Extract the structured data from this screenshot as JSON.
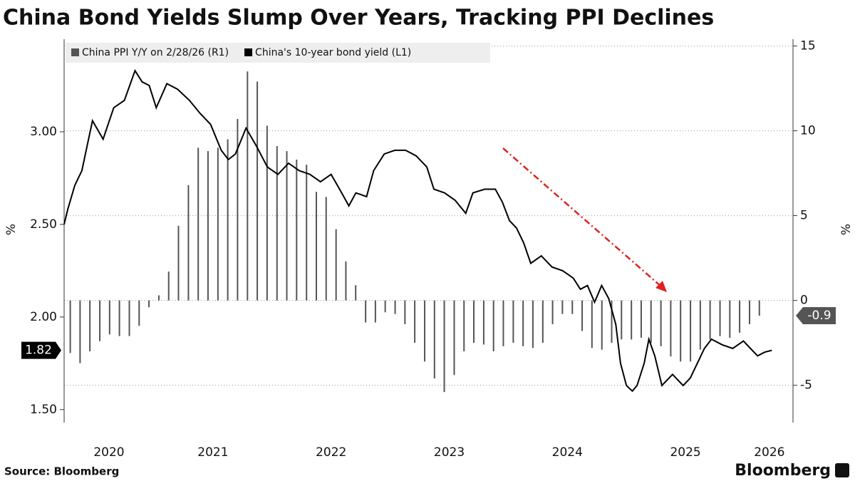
{
  "chart_data": {
    "type": "combo",
    "title": "China Bond Yields Slump Over Years, Tracking PPI Declines",
    "source": "Source: Bloomberg",
    "brand": "Bloomberg",
    "ylabel": "%",
    "y2label": "%",
    "xlim": [
      2020.24,
      2026.41
    ],
    "xticks": [
      {
        "value": 2020.62,
        "label": "2020"
      },
      {
        "value": 2021.5,
        "label": "2021"
      },
      {
        "value": 2022.5,
        "label": "2022"
      },
      {
        "value": 2023.5,
        "label": "2023"
      },
      {
        "value": 2024.5,
        "label": "2024"
      },
      {
        "value": 2025.5,
        "label": "2025"
      },
      {
        "value": 2026.21,
        "label": "2026"
      }
    ],
    "ylim": [
      1.43,
      3.5
    ],
    "yticks": [
      {
        "value": 1.5,
        "label": "1.50"
      },
      {
        "value": 2,
        "label": "2.00"
      },
      {
        "value": 2.5,
        "label": "2.50"
      },
      {
        "value": 3,
        "label": "3.00"
      }
    ],
    "y2lim": [
      -7.2,
      15.4
    ],
    "y2ticks": [
      -5,
      0,
      5,
      10,
      15
    ],
    "grid": true,
    "series": [
      {
        "name": "China PPI Y/Y on 2/28/26 (R1)",
        "type": "bar",
        "axis": "y2",
        "color": "#555555",
        "x": [
          2020.292,
          2020.375,
          2020.458,
          2020.542,
          2020.625,
          2020.708,
          2020.792,
          2020.875,
          2020.958,
          2021.042,
          2021.125,
          2021.208,
          2021.292,
          2021.375,
          2021.458,
          2021.542,
          2021.625,
          2021.708,
          2021.792,
          2021.875,
          2021.958,
          2022.042,
          2022.125,
          2022.208,
          2022.292,
          2022.375,
          2022.458,
          2022.542,
          2022.625,
          2022.708,
          2022.792,
          2022.875,
          2022.958,
          2023.042,
          2023.125,
          2023.208,
          2023.292,
          2023.375,
          2023.458,
          2023.542,
          2023.625,
          2023.708,
          2023.792,
          2023.875,
          2023.958,
          2024.042,
          2024.125,
          2024.208,
          2024.292,
          2024.375,
          2024.458,
          2024.542,
          2024.625,
          2024.708,
          2024.792,
          2024.875,
          2024.958,
          2025.042,
          2025.125,
          2025.208,
          2025.292,
          2025.375,
          2025.458,
          2025.542,
          2025.625,
          2025.708,
          2025.792,
          2025.875,
          2025.958,
          2026.042,
          2026.125
        ],
        "values": [
          -3.1,
          -3.7,
          -3.0,
          -2.4,
          -2.0,
          -2.1,
          -2.1,
          -1.5,
          -0.4,
          0.3,
          1.7,
          4.4,
          6.8,
          9.0,
          8.8,
          9.0,
          9.5,
          10.7,
          13.5,
          12.9,
          10.3,
          9.1,
          8.8,
          8.3,
          8.0,
          6.4,
          6.1,
          4.2,
          2.3,
          0.9,
          -1.3,
          -1.3,
          -0.7,
          -0.8,
          -1.4,
          -2.5,
          -3.6,
          -4.6,
          -5.4,
          -4.4,
          -3.0,
          -2.5,
          -2.6,
          -3.0,
          -2.7,
          -2.5,
          -2.7,
          -2.8,
          -2.5,
          -1.4,
          -0.8,
          -0.8,
          -1.8,
          -2.8,
          -2.9,
          -2.5,
          -2.3,
          -2.3,
          -2.2,
          -2.5,
          -2.7,
          -3.3,
          -3.6,
          -3.6,
          -2.9,
          -2.3,
          -2.1,
          -2.2,
          -1.9,
          -1.4,
          -0.9
        ]
      },
      {
        "name": "China's 10-year bond yield (L1)",
        "type": "line",
        "axis": "y",
        "color": "#000000",
        "x": [
          2020.24,
          2020.27,
          2020.33,
          2020.39,
          2020.48,
          2020.57,
          2020.66,
          2020.75,
          2020.84,
          2020.9,
          2020.96,
          2021.02,
          2021.11,
          2021.2,
          2021.3,
          2021.39,
          2021.48,
          2021.57,
          2021.63,
          2021.69,
          2021.78,
          2021.87,
          2021.96,
          2022.05,
          2022.14,
          2022.23,
          2022.32,
          2022.41,
          2022.5,
          2022.59,
          2022.65,
          2022.71,
          2022.8,
          2022.86,
          2022.95,
          2023.04,
          2023.13,
          2023.22,
          2023.31,
          2023.37,
          2023.46,
          2023.55,
          2023.64,
          2023.7,
          2023.8,
          2023.89,
          2023.95,
          2024.01,
          2024.07,
          2024.13,
          2024.19,
          2024.28,
          2024.37,
          2024.46,
          2024.55,
          2024.61,
          2024.67,
          2024.73,
          2024.79,
          2024.85,
          2024.91,
          2024.95,
          2025.0,
          2025.05,
          2025.09,
          2025.15,
          2025.19,
          2025.24,
          2025.3,
          2025.39,
          2025.48,
          2025.54,
          2025.6,
          2025.66,
          2025.72,
          2025.81,
          2025.9,
          2025.99,
          2026.05,
          2026.11,
          2026.17,
          2026.23
        ],
        "values": [
          2.5,
          2.58,
          2.71,
          2.79,
          3.06,
          2.96,
          3.13,
          3.17,
          3.33,
          3.27,
          3.25,
          3.13,
          3.26,
          3.23,
          3.17,
          3.1,
          3.04,
          2.9,
          2.85,
          2.88,
          3.02,
          2.92,
          2.81,
          2.77,
          2.83,
          2.79,
          2.77,
          2.73,
          2.77,
          2.67,
          2.6,
          2.67,
          2.65,
          2.79,
          2.88,
          2.9,
          2.9,
          2.87,
          2.81,
          2.69,
          2.67,
          2.63,
          2.56,
          2.67,
          2.69,
          2.69,
          2.62,
          2.52,
          2.48,
          2.4,
          2.29,
          2.33,
          2.27,
          2.25,
          2.21,
          2.15,
          2.17,
          2.08,
          2.17,
          2.1,
          1.96,
          1.75,
          1.63,
          1.6,
          1.63,
          1.75,
          1.88,
          1.79,
          1.63,
          1.69,
          1.63,
          1.67,
          1.75,
          1.83,
          1.88,
          1.85,
          1.83,
          1.87,
          1.83,
          1.79,
          1.81,
          1.82
        ]
      }
    ]
  }
}
